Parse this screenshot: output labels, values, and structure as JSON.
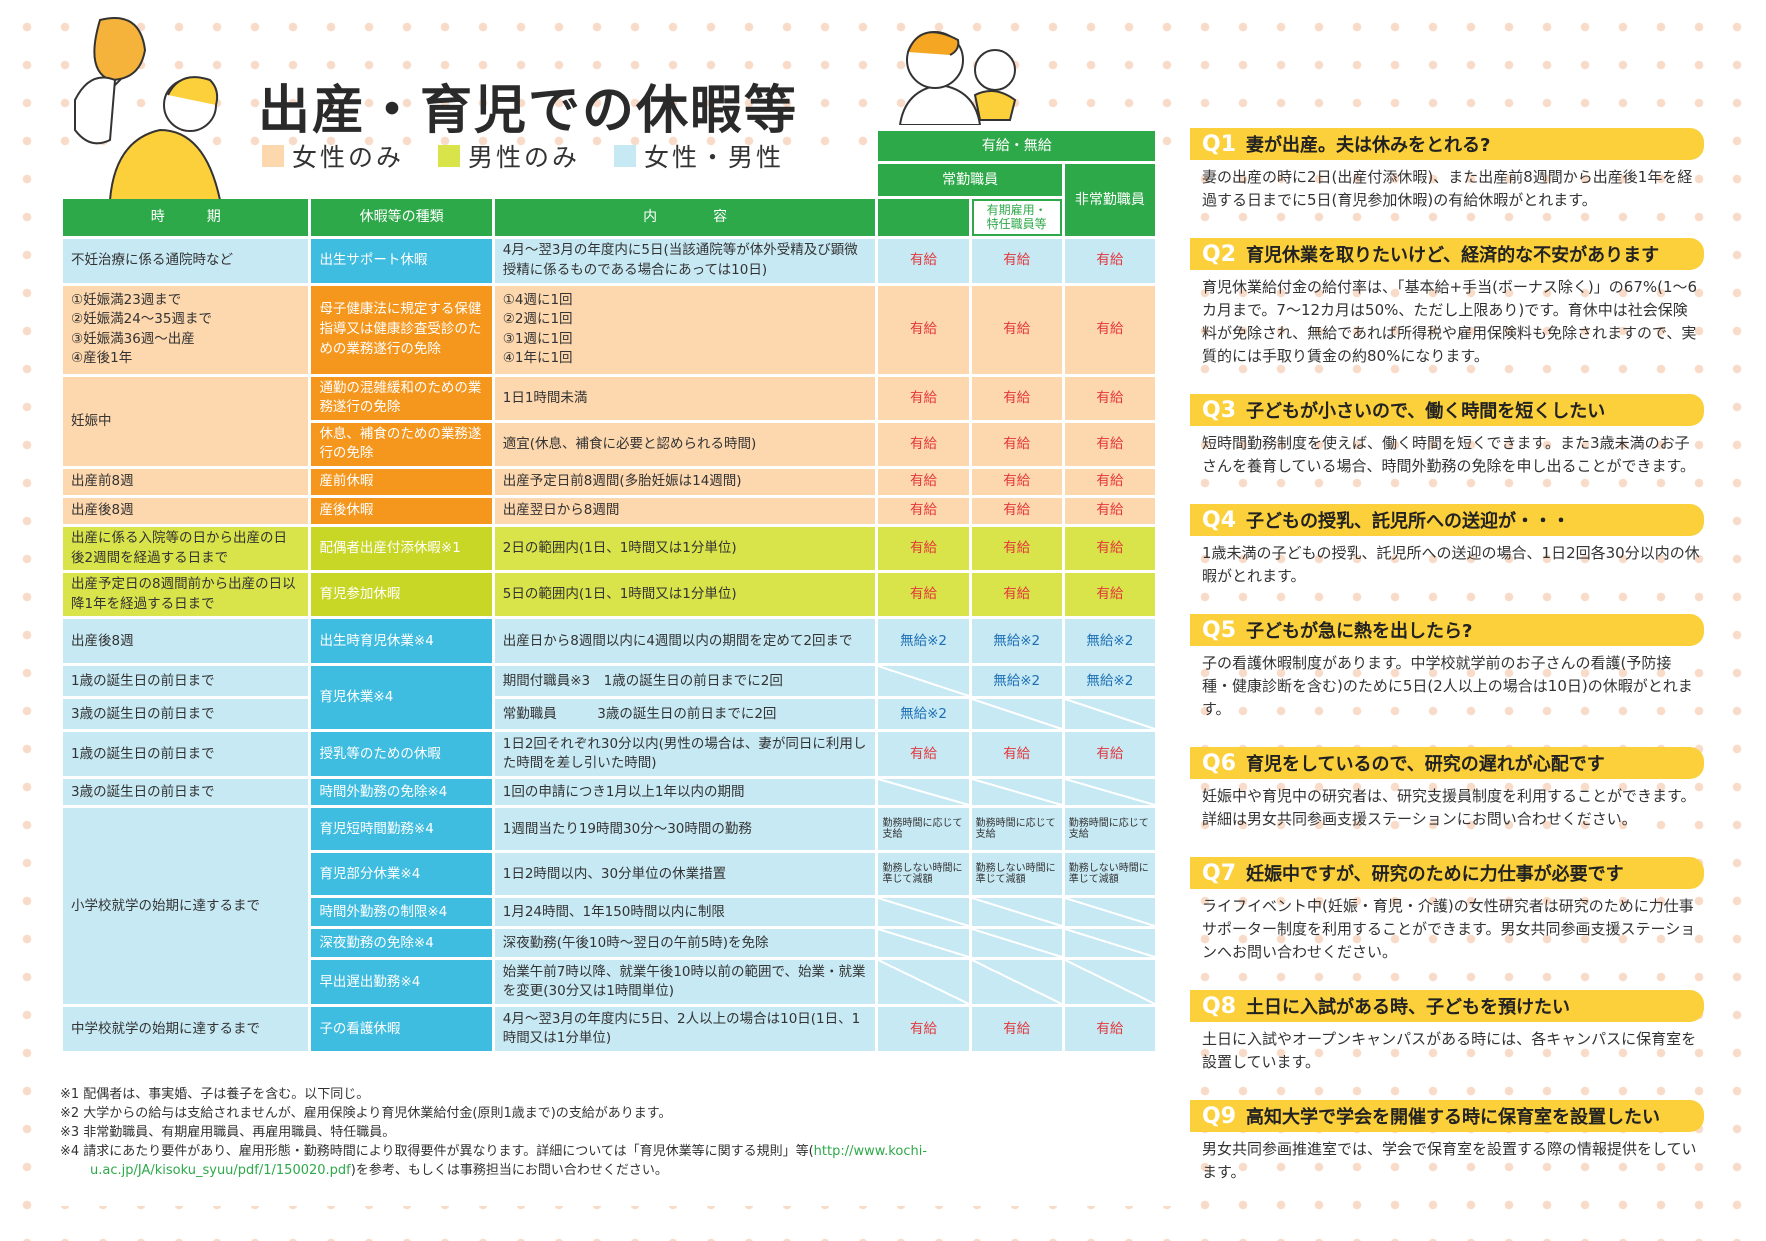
{
  "title": "出産・育児での休暇等",
  "legend": [
    {
      "label": "女性のみ",
      "color": "#fdd7ad"
    },
    {
      "label": "男性のみ",
      "color": "#d9e34a"
    },
    {
      "label": "女性・男性",
      "color": "#c7e9f4"
    }
  ],
  "table": {
    "header": {
      "pay": "有給・無給",
      "period": "時　　　期",
      "type": "休暇等の種類",
      "content": "内　　　　容",
      "fulltime": "常勤職員",
      "fixedterm": "有期雇用・特任職員等",
      "parttime": "非常勤職員"
    },
    "rows": [
      {
        "period": "不妊治療に係る通院時など",
        "type": "出生サポート休暇",
        "content": "4月～翌3月の年度内に5日(当該通院等が体外受精及び顕微授精に係るものである場合にあっては10日)",
        "pay": [
          "有給",
          "有給",
          "有給"
        ]
      },
      {
        "period": "①妊娠満23週まで\n②妊娠満24～35週まで\n③妊娠満36週～出産\n④産後1年",
        "type": "母子健康法に規定する保健指導又は健康診査受診のための業務遂行の免除",
        "content": "①4週に1回\n②2週に1回\n③1週に1回\n④1年に1回",
        "pay": [
          "有給",
          "有給",
          "有給"
        ]
      },
      {
        "period": "妊娠中",
        "type": "通勤の混雑緩和のための業務遂行の免除",
        "content": "1日1時間未満",
        "pay": [
          "有給",
          "有給",
          "有給"
        ]
      },
      {
        "type": "休息、補食のための業務遂行の免除",
        "content": "適宜(休息、補食に必要と認められる時間)",
        "pay": [
          "有給",
          "有給",
          "有給"
        ]
      },
      {
        "period": "出産前8週",
        "type": "産前休暇",
        "content": "出産予定日前8週間(多胎妊娠は14週間)",
        "pay": [
          "有給",
          "有給",
          "有給"
        ]
      },
      {
        "period": "出産後8週",
        "type": "産後休暇",
        "content": "出産翌日から8週間",
        "pay": [
          "有給",
          "有給",
          "有給"
        ]
      },
      {
        "period": "出産に係る入院等の日から出産の日後2週間を経過する日まで",
        "type": "配偶者出産付添休暇※1",
        "content": "2日の範囲内(1日、1時間又は1分単位)",
        "pay": [
          "有給",
          "有給",
          "有給"
        ]
      },
      {
        "period": "出産予定日の8週間前から出産の日以降1年を経過する日まで",
        "type": "育児参加休暇",
        "content": "5日の範囲内(1日、1時間又は1分単位)",
        "pay": [
          "有給",
          "有給",
          "有給"
        ]
      },
      {
        "period": "出産後8週",
        "type": "出生時育児休業※4",
        "content": "出産日から8週間以内に4週間以内の期間を定めて2回まで",
        "pay": [
          "無給※2",
          "無給※2",
          "無給※2"
        ]
      },
      {
        "period": "1歳の誕生日の前日まで",
        "type": "育児休業※4",
        "content": "期間付職員※3　1歳の誕生日の前日までに2回",
        "pay": [
          "",
          "無給※2",
          "無給※2"
        ]
      },
      {
        "period": "3歳の誕生日の前日まで",
        "content": "常勤職員　　　3歳の誕生日の前日までに2回",
        "pay": [
          "無給※2",
          "",
          ""
        ]
      },
      {
        "period": "1歳の誕生日の前日まで",
        "type": "授乳等のための休暇",
        "content": "1日2回それぞれ30分以内(男性の場合は、妻が同日に利用した時間を差し引いた時間)",
        "pay": [
          "有給",
          "有給",
          "有給"
        ]
      },
      {
        "period": "3歳の誕生日の前日まで",
        "type": "時間外勤務の免除※4",
        "content": "1回の申請につき1月以上1年以内の期間"
      },
      {
        "period": "小学校就学の始期に達するまで",
        "type": "育児短時間勤務※4",
        "content": "1週間当たり19時間30分～30時間の勤務",
        "pay": [
          "勤務時間に応じて支給",
          "勤務時間に応じて支給",
          "勤務時間に応じて支給"
        ]
      },
      {
        "type": "育児部分休業※4",
        "content": "1日2時間以内、30分単位の休業措置",
        "pay": [
          "勤務しない時間に準じて減額",
          "勤務しない時間に準じて減額",
          "勤務しない時間に準じて減額"
        ]
      },
      {
        "type": "時間外勤務の制限※4",
        "content": "1月24時間、1年150時間以内に制限"
      },
      {
        "type": "深夜勤務の免除※4",
        "content": "深夜勤務(午後10時～翌日の午前5時)を免除"
      },
      {
        "type": "早出遅出勤務※4",
        "content": "始業午前7時以降、就業午後10時以前の範囲で、始業・就業を変更(30分又は1時間単位)"
      },
      {
        "period": "中学校就学の始期に達するまで",
        "type": "子の看護休暇",
        "content": "4月～翌3月の年度内に5日、2人以上の場合は10日(1日、1時間又は1分単位)",
        "pay": [
          "有給",
          "有給",
          "有給"
        ]
      }
    ]
  },
  "notes": [
    "※1 配偶者は、事実婚、子は養子を含む。以下同じ。",
    "※2 大学からの給与は支給されませんが、雇用保険より育児休業給付金(原則1歳まで)の支給があります。",
    "※3 非常勤職員、有期雇用職員、再雇用職員、特任職員。",
    "※4 請求にあたり要件があり、雇用形態・勤務時間により取得要件が異なります。詳細については「育児休業等に関する規則」等(",
    "http://www.kochi-u.ac.jp/JA/kisoku_syuu/pdf/1/150020.pdf",
    ")を参考、もしくは事務担当にお問い合わせください。"
  ],
  "faq": [
    {
      "num": "Q1",
      "q": "妻が出産。夫は休みをとれる?",
      "a": "妻の出産の時に2日(出産付添休暇)、また出産前8週間から出産後1年を経過する日までに5日(育児参加休暇)の有給休暇がとれます。"
    },
    {
      "num": "Q2",
      "q": "育児休業を取りたいけど、経済的な不安があります",
      "a": "育児休業給付金の給付率は、「基本給+手当(ボーナス除く)」の67%(1～6カ月まで。7～12カ月は50%、ただし上限あり)です。育休中は社会保険料が免除され、無給であれば所得税や雇用保険料も免除されますので、実質的には手取り賃金の約80%になります。"
    },
    {
      "num": "Q3",
      "q": "子どもが小さいので、働く時間を短くしたい",
      "a": "短時間勤務制度を使えば、働く時間を短くできます。また3歳未満のお子さんを養育している場合、時間外勤務の免除を申し出ることができます。"
    },
    {
      "num": "Q4",
      "q": "子どもの授乳、託児所への送迎が・・・",
      "a": "1歳未満の子どもの授乳、託児所への送迎の場合、1日2回各30分以内の休暇がとれます。"
    },
    {
      "num": "Q5",
      "q": "子どもが急に熱を出したら?",
      "a": "子の看護休暇制度があります。中学校就学前のお子さんの看護(予防接種・健康診断を含む)のために5日(2人以上の場合は10日)の休暇がとれます。"
    },
    {
      "num": "Q6",
      "q": "育児をしているので、研究の遅れが心配です",
      "a": "妊娠中や育児中の研究者は、研究支援員制度を利用することができます。詳細は男女共同参画支援ステーションにお問い合わせください。"
    },
    {
      "num": "Q7",
      "q": "妊娠中ですが、研究のために力仕事が必要です",
      "a": "ライフイベント中(妊娠・育児・介護)の女性研究者は研究のために力仕事サポーター制度を利用することができます。男女共同参画支援ステーションへお問い合わせください。"
    },
    {
      "num": "Q8",
      "q": "土日に入試がある時、子どもを預けたい",
      "a": "土日に入試やオープンキャンパスがある時には、各キャンパスに保育室を設置しています。"
    },
    {
      "num": "Q9",
      "q": "高知大学で学会を開催する時に保育室を設置したい",
      "a": "男女共同参画推進室では、学会で保育室を設置する際の情報提供をしています。"
    }
  ]
}
